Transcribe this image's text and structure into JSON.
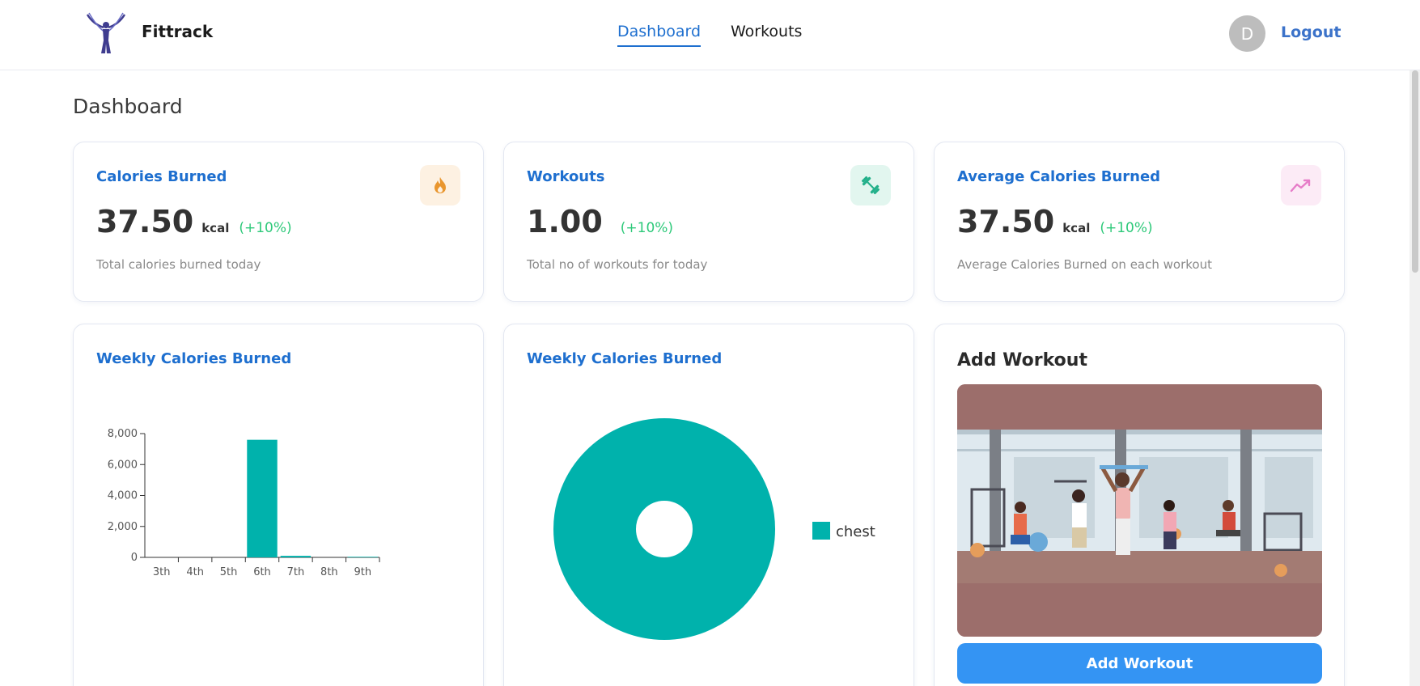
{
  "brand": {
    "name": "Fittrack"
  },
  "nav": {
    "links": [
      {
        "label": "Dashboard"
      },
      {
        "label": "Workouts"
      }
    ]
  },
  "user": {
    "avatar_initial": "D",
    "logout_label": "Logout"
  },
  "page": {
    "title": "Dashboard"
  },
  "stats": [
    {
      "title": "Calories Burned",
      "value": "37.50",
      "unit": "kcal",
      "change": "(+10%)",
      "description": "Total calories burned today",
      "icon": "flame-icon",
      "icon_color": "#e9962e",
      "icon_bg": "#fdf1e2"
    },
    {
      "title": "Workouts",
      "value": "1.00",
      "unit": "",
      "change": "(+10%)",
      "description": "Total no of workouts for today",
      "icon": "dumbbell-icon",
      "icon_color": "#23b08a",
      "icon_bg": "#e2f6ef"
    },
    {
      "title": "Average Calories Burned",
      "value": "37.50",
      "unit": "kcal",
      "change": "(+10%)",
      "description": "Average Calories Burned on each workout",
      "icon": "trend-up-icon",
      "icon_color": "#e67cc8",
      "icon_bg": "#fcebf6"
    }
  ],
  "charts": {
    "bar_title": "Weekly Calories Burned",
    "pie_title": "Weekly Calories Burned"
  },
  "chart_data": [
    {
      "type": "bar",
      "title": "Weekly Calories Burned",
      "categories": [
        "3th",
        "4th",
        "5th",
        "6th",
        "7th",
        "8th",
        "9th"
      ],
      "values": [
        0,
        0,
        0,
        7600,
        100,
        0,
        38
      ],
      "ylim": [
        0,
        8000
      ],
      "yticks": [
        "8,000",
        "6,000",
        "4,000",
        "2,000",
        "0"
      ],
      "color": "#00b2ac"
    },
    {
      "type": "pie",
      "title": "Weekly Calories Burned",
      "slices": [
        {
          "label": "chest",
          "value": 100
        }
      ],
      "legend": [
        "chest"
      ],
      "color": "#00b2ac"
    }
  ],
  "add_workout": {
    "title": "Add Workout",
    "button_label": "Add Workout"
  }
}
